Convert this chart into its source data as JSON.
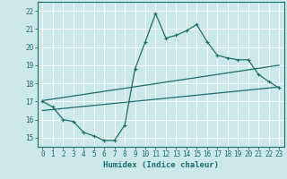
{
  "title": "",
  "xlabel": "Humidex (Indice chaleur)",
  "ylabel": "",
  "bg_color": "#cce8e8",
  "line_color": "#1a6e6e",
  "grid_color": "#ffffff",
  "xlim": [
    -0.5,
    23.5
  ],
  "ylim": [
    14.5,
    22.5
  ],
  "yticks": [
    15,
    16,
    17,
    18,
    19,
    20,
    21,
    22
  ],
  "xticks": [
    0,
    1,
    2,
    3,
    4,
    5,
    6,
    7,
    8,
    9,
    10,
    11,
    12,
    13,
    14,
    15,
    16,
    17,
    18,
    19,
    20,
    21,
    22,
    23
  ],
  "curve1_x": [
    0,
    1,
    2,
    3,
    4,
    5,
    6,
    7,
    8,
    9,
    10,
    11,
    12,
    13,
    14,
    15,
    16,
    17,
    18,
    19,
    20,
    21,
    22,
    23
  ],
  "curve1_y": [
    17.0,
    16.7,
    16.0,
    15.9,
    15.3,
    15.1,
    14.85,
    14.85,
    15.7,
    18.8,
    20.3,
    21.85,
    20.5,
    20.65,
    20.9,
    21.25,
    20.3,
    19.55,
    19.4,
    19.3,
    19.3,
    18.5,
    18.1,
    17.75
  ],
  "curve2_x": [
    0,
    23
  ],
  "curve2_y": [
    17.05,
    19.0
  ],
  "curve3_x": [
    0,
    23
  ],
  "curve3_y": [
    16.5,
    17.8
  ]
}
